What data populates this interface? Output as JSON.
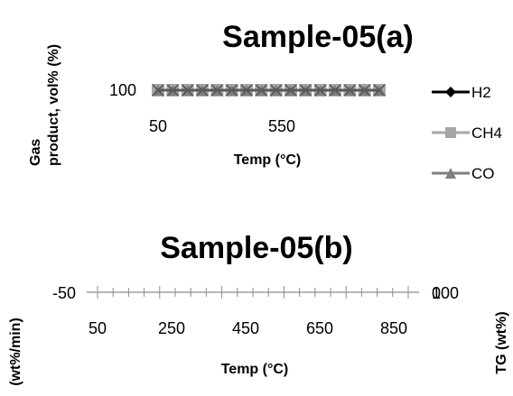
{
  "chart_data": [
    {
      "type": "line",
      "title": "Sample-05(a)",
      "xlabel": "Temp (°C)",
      "ylabel": "Gas product, vol% (%)",
      "x_ticks": [
        "50",
        "550"
      ],
      "y_ticks": [
        "100"
      ],
      "x": [
        50,
        100,
        150,
        200,
        250,
        300,
        350,
        400,
        450,
        500,
        550,
        600,
        650,
        700,
        750,
        800
      ],
      "series": [
        {
          "name": "H2",
          "values": [
            100,
            100,
            100,
            100,
            100,
            100,
            100,
            100,
            100,
            100,
            100,
            100,
            100,
            100,
            100,
            100
          ],
          "color": "#000000",
          "marker": "diamond"
        },
        {
          "name": "CH4",
          "values": [
            100,
            100,
            100,
            100,
            100,
            100,
            100,
            100,
            100,
            100,
            100,
            100,
            100,
            100,
            100,
            100
          ],
          "color": "#a6a6a6",
          "marker": "square"
        },
        {
          "name": "CO",
          "values": [
            100,
            100,
            100,
            100,
            100,
            100,
            100,
            100,
            100,
            100,
            100,
            100,
            100,
            100,
            100,
            100
          ],
          "color": "#7f7f7f",
          "marker": "triangle"
        },
        {
          "name": "",
          "values": [
            100,
            100,
            100,
            100,
            100,
            100,
            100,
            100,
            100,
            100,
            100,
            100,
            100,
            100,
            100,
            100
          ],
          "color": "#595959",
          "marker": "x"
        }
      ],
      "legend_position": "right"
    },
    {
      "type": "line",
      "title": "Sample-05(b)",
      "xlabel": "Temp (°C)",
      "ylabel": "(wt%/min)",
      "y2label": "TG (wt%)",
      "x_ticks": [
        "50",
        "250",
        "450",
        "650",
        "850"
      ],
      "y_ticks": [
        "-50"
      ],
      "y2_ticks": [
        "100",
        "0"
      ],
      "xlim": [
        50,
        850
      ],
      "series": []
    }
  ]
}
